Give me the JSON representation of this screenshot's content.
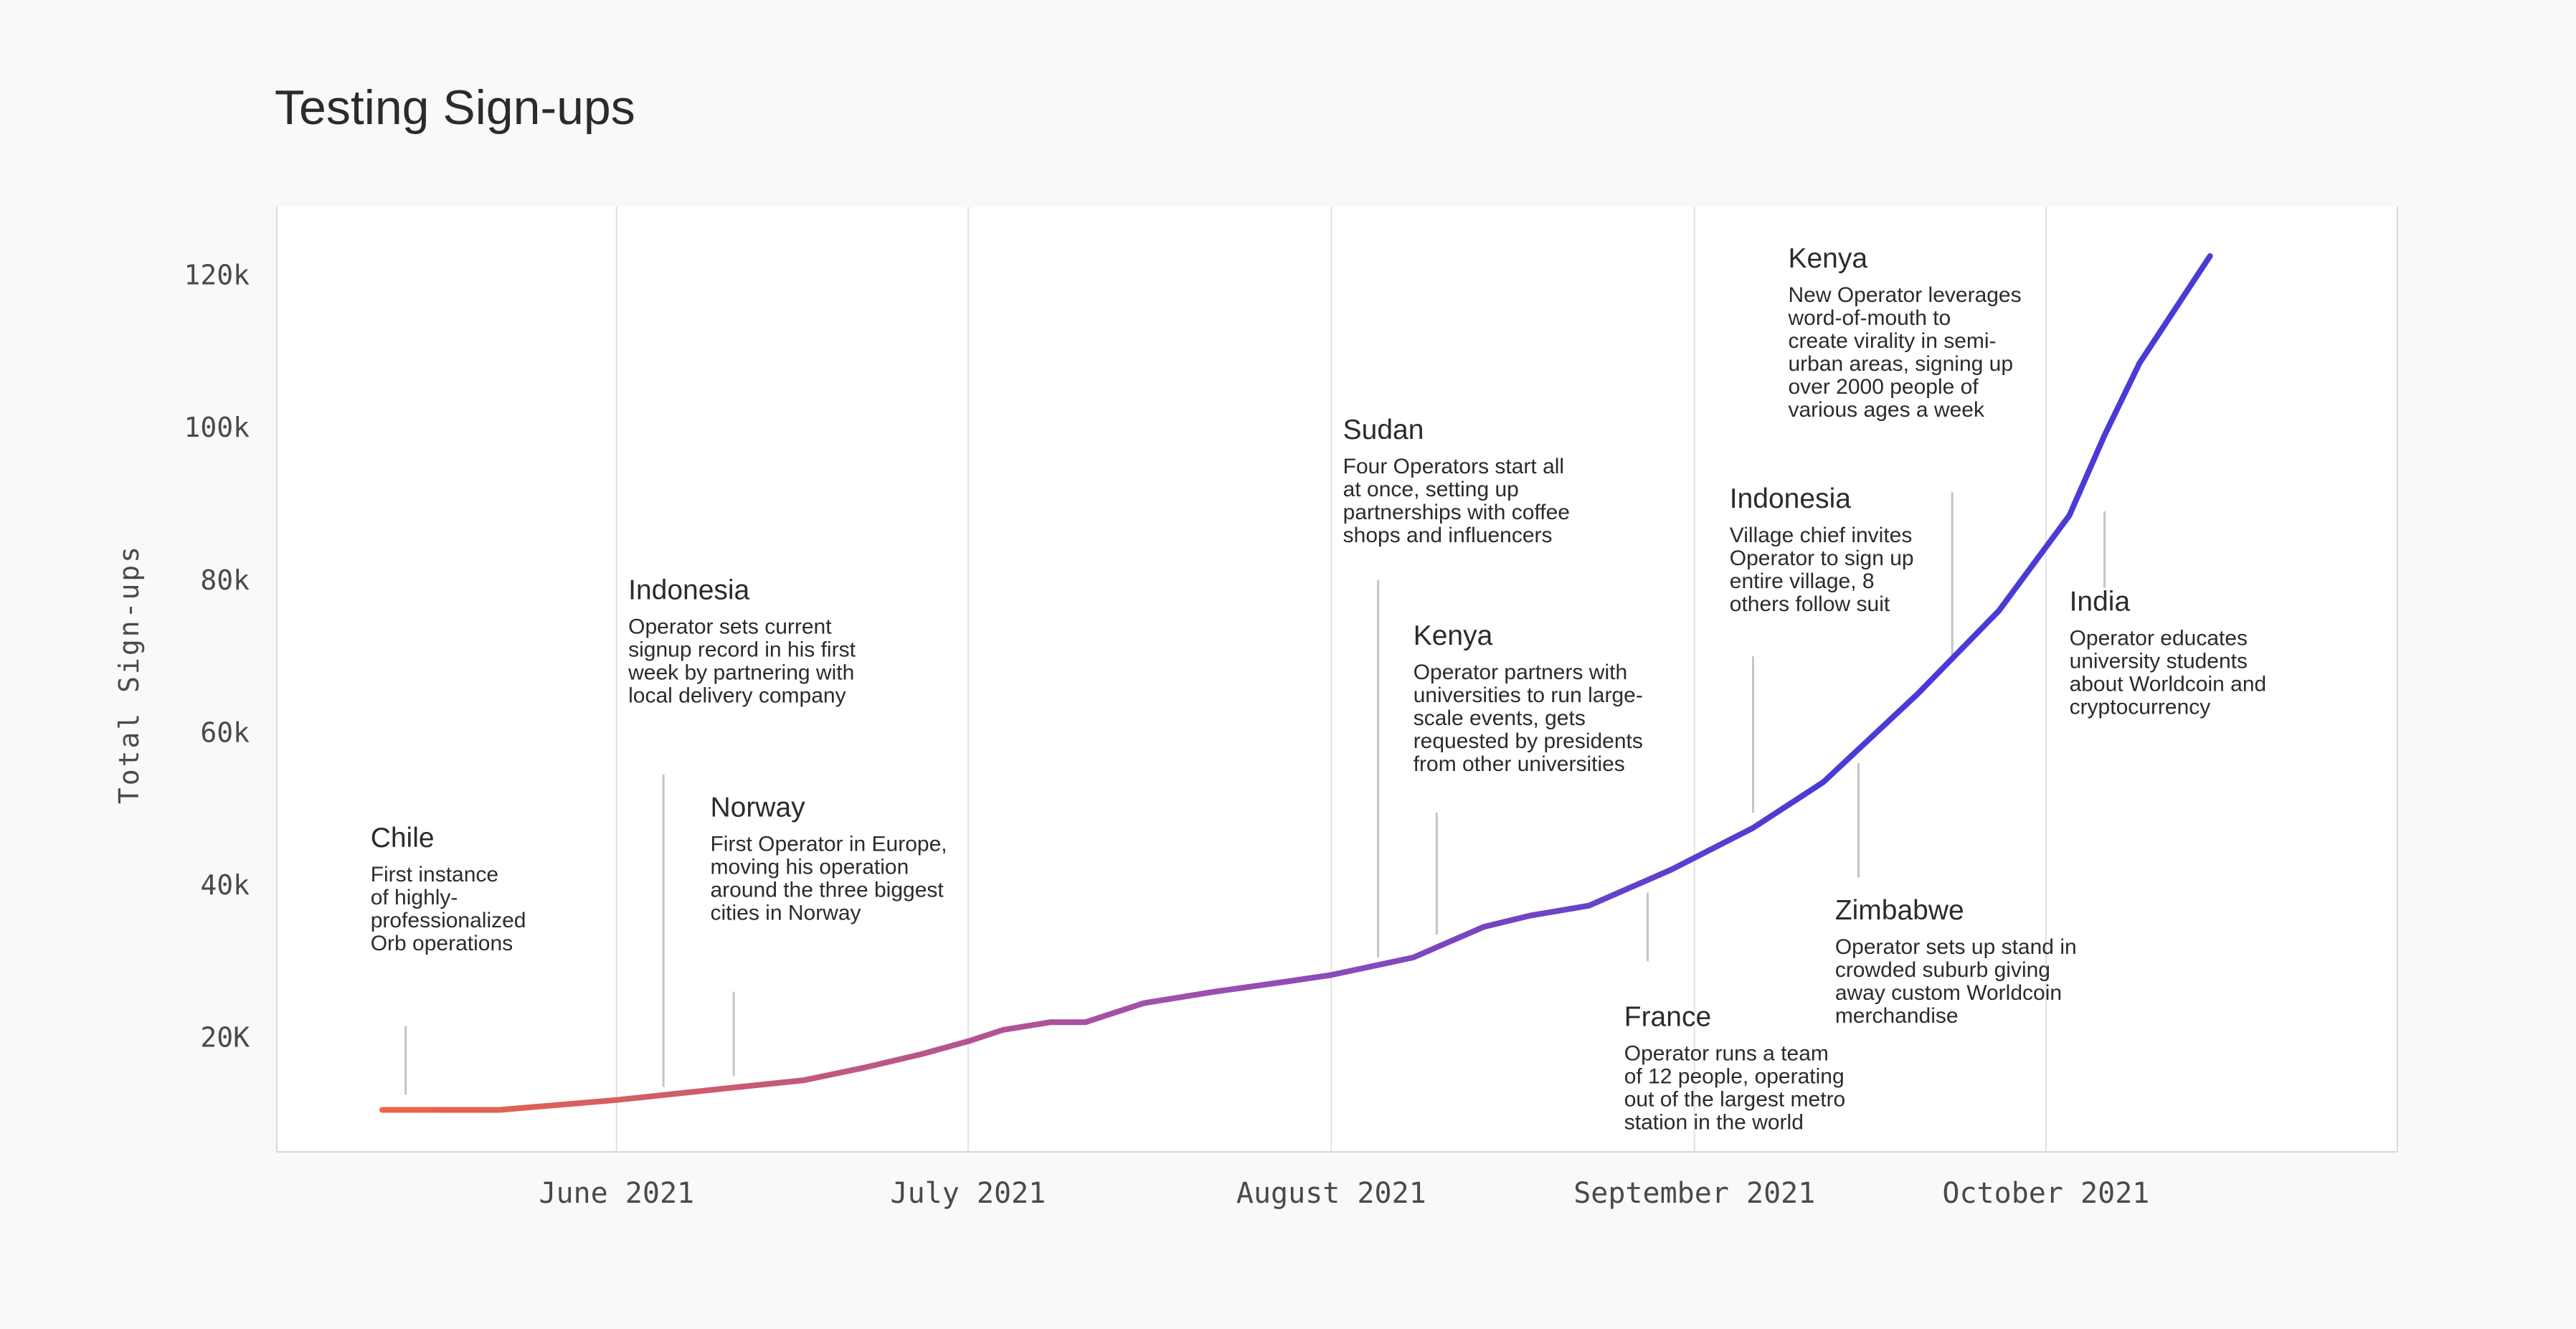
{
  "chart_data": {
    "type": "line",
    "title": "Testing Sign-ups",
    "ylabel": "Total Sign-ups",
    "xlabel": "",
    "y_ticks": [
      {
        "value": 120000,
        "label": "120k"
      },
      {
        "value": 100000,
        "label": "100k"
      },
      {
        "value": 80000,
        "label": "80k"
      },
      {
        "value": 60000,
        "label": "60k"
      },
      {
        "value": 40000,
        "label": "40k"
      },
      {
        "value": 20000,
        "label": "20K"
      }
    ],
    "x_ticks": [
      {
        "date": "2021-06-01",
        "label": "June 2021"
      },
      {
        "date": "2021-07-01",
        "label": "July 2021"
      },
      {
        "date": "2021-08-01",
        "label": "August 2021"
      },
      {
        "date": "2021-09-01",
        "label": "September 2021"
      },
      {
        "date": "2021-10-01",
        "label": "October 2021"
      }
    ],
    "xlim": [
      "2021-05-03",
      "2021-10-31"
    ],
    "ylim": [
      5000,
      129000
    ],
    "grid": "vertical",
    "colors": {
      "start": "#ec6444",
      "mid": "#9b4fb0",
      "end": "#4a3ad6",
      "grid": "#e2e2e2",
      "leader": "#c4c4c4",
      "frame": "#d9d9d9",
      "plot_bg": "#ffffff",
      "page_bg": "#f9f9f9"
    },
    "series": [
      {
        "x": [
          "2021-05-12",
          "2021-05-22",
          "2021-06-01",
          "2021-06-12",
          "2021-06-17",
          "2021-06-22",
          "2021-06-27",
          "2021-07-01",
          "2021-07-04",
          "2021-07-08",
          "2021-07-11",
          "2021-07-16",
          "2021-07-22",
          "2021-07-28",
          "2021-08-01",
          "2021-08-08",
          "2021-08-14",
          "2021-08-18",
          "2021-08-23",
          "2021-08-30",
          "2021-09-06",
          "2021-09-12",
          "2021-09-20",
          "2021-09-27",
          "2021-10-03",
          "2021-10-06",
          "2021-10-09",
          "2021-10-12",
          "2021-10-15"
        ],
        "y": [
          10500,
          10500,
          11800,
          13600,
          14400,
          16000,
          17800,
          19500,
          21000,
          22000,
          22000,
          24500,
          26000,
          27300,
          28200,
          30500,
          34500,
          36000,
          37300,
          42000,
          47500,
          53500,
          65000,
          76000,
          88500,
          99000,
          108500,
          115500,
          122500
        ]
      }
    ],
    "annotations": [
      {
        "date": "2021-05-14",
        "y": 12500,
        "title": "Chile",
        "lines": [
          "First instance",
          "of highly-",
          "professionalized",
          "Orb operations"
        ],
        "text_date": "2021-05-11",
        "text_y": 45000,
        "lead_date": "2021-05-14",
        "lead_top": 21500,
        "lead_bottom": 12500
      },
      {
        "date": "2021-06-05",
        "y": 13500,
        "title": "Indonesia",
        "lines": [
          "Operator sets current",
          "signup record in his first",
          "week by partnering with",
          "local delivery company"
        ],
        "text_date": "2021-06-02",
        "text_y": 77500,
        "lead_date": "2021-06-05",
        "lead_top": 54500,
        "lead_bottom": 13500
      },
      {
        "date": "2021-06-11",
        "y": 15000,
        "title": "Norway",
        "lines": [
          "First Operator in Europe,",
          "moving his operation",
          "around the three biggest",
          "cities in Norway"
        ],
        "text_date": "2021-06-09",
        "text_y": 49000,
        "lead_date": "2021-06-11",
        "lead_top": 26000,
        "lead_bottom": 15000
      },
      {
        "date": "2021-08-05",
        "y": 30500,
        "title": "Sudan",
        "lines": [
          "Four Operators start all",
          "at once, setting up",
          "partnerships with coffee",
          "shops and influencers"
        ],
        "text_date": "2021-08-02",
        "text_y": 98500,
        "lead_date": "2021-08-05",
        "lead_top": 80000,
        "lead_bottom": 30500
      },
      {
        "date": "2021-08-10",
        "y": 33500,
        "title": "Kenya",
        "lines": [
          "Operator partners with",
          "universities to run large-",
          "scale events, gets",
          "requested by presidents",
          "from other universities"
        ],
        "text_date": "2021-08-08",
        "text_y": 71500,
        "lead_date": "2021-08-10",
        "lead_top": 49500,
        "lead_bottom": 33500
      },
      {
        "date": "2021-08-28",
        "y": 30000,
        "title": "France",
        "lines": [
          "Operator runs a team",
          "of 12 people, operating",
          "out of the largest metro",
          "station in the world"
        ],
        "text_date": "2021-08-26",
        "text_y": 21500,
        "lead_date": "2021-08-28",
        "lead_top": 39000,
        "lead_bottom": 30000
      },
      {
        "date": "2021-09-06",
        "y": 49500,
        "title": "Indonesia",
        "lines": [
          "Village chief invites",
          "Operator to sign up",
          "entire village, 8",
          "others follow suit"
        ],
        "text_date": "2021-09-04",
        "text_y": 89500,
        "lead_date": "2021-09-06",
        "lead_top": 70000,
        "lead_bottom": 49500
      },
      {
        "date": "2021-09-15",
        "y": 41000,
        "title": "Zimbabwe",
        "lines": [
          "Operator sets up stand in",
          "crowded suburb giving",
          "away custom Worldcoin",
          "merchandise"
        ],
        "text_date": "2021-09-13",
        "text_y": 35500,
        "lead_date": "2021-09-15",
        "lead_top": 56000,
        "lead_bottom": 41000
      },
      {
        "date": "2021-09-23",
        "y": 70000,
        "title": "Kenya",
        "lines": [
          "New Operator leverages",
          "word-of-mouth to",
          "create virality in semi-",
          "urban areas, signing up",
          "over 2000 people of",
          "various ages a week"
        ],
        "text_date": "2021-09-09",
        "text_y": 121000,
        "lead_date": "2021-09-23",
        "lead_top": 91500,
        "lead_bottom": 70000
      },
      {
        "date": "2021-10-06",
        "y": 79000,
        "title": "India",
        "lines": [
          "Operator educates",
          "university students",
          "about Worldcoin and",
          "cryptocurrency"
        ],
        "text_date": "2021-10-03",
        "text_y": 76000,
        "lead_date": "2021-10-06",
        "lead_top": 89000,
        "lead_bottom": 79000
      }
    ]
  }
}
